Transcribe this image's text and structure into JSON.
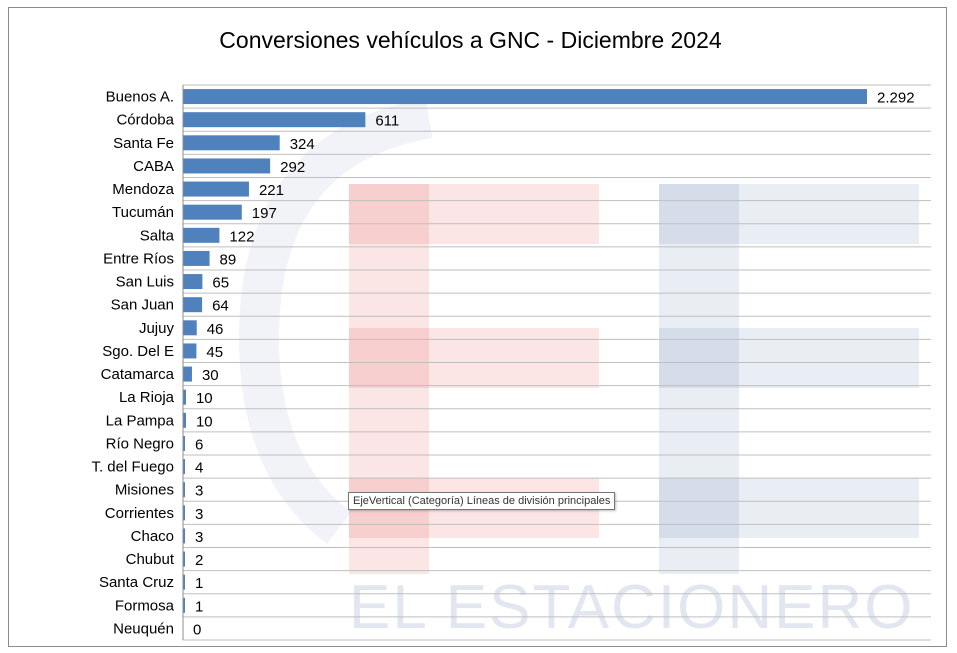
{
  "chart_data": {
    "type": "bar",
    "orientation": "horizontal",
    "title": "Conversiones vehículos a GNC - Diciembre 2024",
    "categories": [
      "Buenos A.",
      "Córdoba",
      "Santa Fe",
      "CABA",
      "Mendoza",
      "Tucumán",
      "Salta",
      "Entre Ríos",
      "San Luis",
      "San Juan",
      "Jujuy",
      "Sgo. Del E",
      "Catamarca",
      "La Rioja",
      "La Pampa",
      "Río Negro",
      "T. del Fuego",
      "Misiones",
      "Corrientes",
      "Chaco",
      "Chubut",
      "Santa Cruz",
      "Formosa",
      "Neuquén"
    ],
    "values": [
      2292,
      611,
      324,
      292,
      221,
      197,
      122,
      89,
      65,
      64,
      46,
      45,
      30,
      10,
      10,
      6,
      4,
      3,
      3,
      3,
      2,
      1,
      1,
      0
    ],
    "value_labels": [
      "2.292",
      "611",
      "324",
      "292",
      "221",
      "197",
      "122",
      "89",
      "65",
      "64",
      "46",
      "45",
      "30",
      "10",
      "10",
      "6",
      "4",
      "3",
      "3",
      "3",
      "2",
      "1",
      "1",
      "0"
    ],
    "xlim": [
      0,
      2500
    ],
    "grid": "horizontal",
    "legend": "none",
    "bar_color": "#4f81bd"
  },
  "tooltip": {
    "text": "EjeVertical (Categoría)  Líneas de división principales"
  },
  "watermark": {
    "text": "EL ESTACIONERO",
    "red": "#e8605c",
    "blue": "#4a6aa8"
  }
}
